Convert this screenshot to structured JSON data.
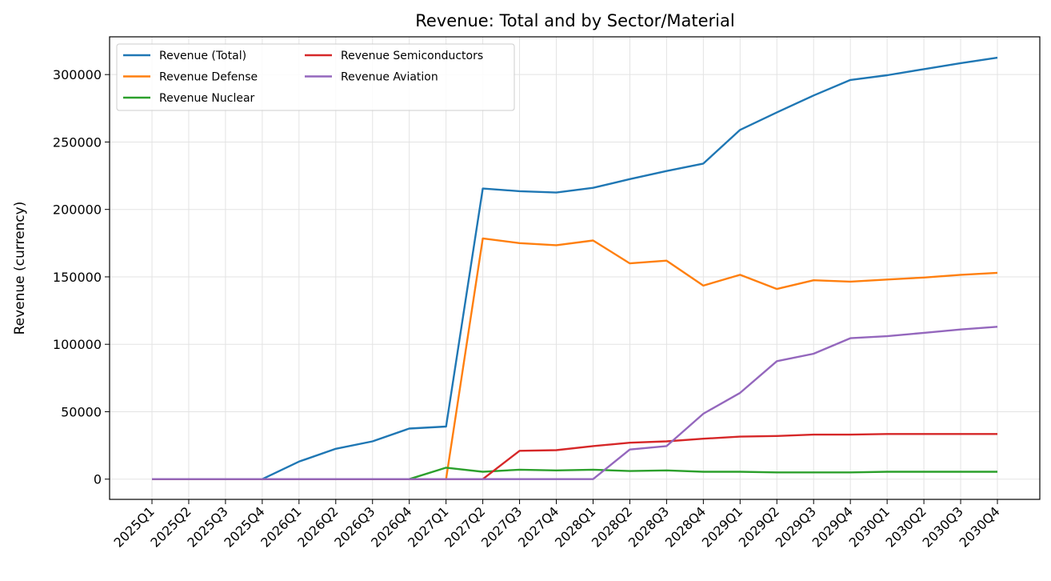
{
  "chart_data": {
    "type": "line",
    "title": "Revenue: Total and by Sector/Material",
    "xlabel": "",
    "ylabel": "Revenue (currency)",
    "ylim": [
      -15000,
      328000
    ],
    "yticks": [
      0,
      50000,
      100000,
      150000,
      200000,
      250000,
      300000
    ],
    "grid": true,
    "legend_position": "top-left",
    "legend_columns": 2,
    "categories": [
      "2025Q1",
      "2025Q2",
      "2025Q3",
      "2025Q4",
      "2026Q1",
      "2026Q2",
      "2026Q3",
      "2026Q4",
      "2027Q1",
      "2027Q2",
      "2027Q3",
      "2027Q4",
      "2028Q1",
      "2028Q2",
      "2028Q3",
      "2028Q4",
      "2029Q1",
      "2029Q2",
      "2029Q3",
      "2029Q4",
      "2030Q1",
      "2030Q2",
      "2030Q3",
      "2030Q4"
    ],
    "series": [
      {
        "name": "Revenue (Total)",
        "color": "#1f77b4",
        "values": [
          0,
          0,
          0,
          0,
          13000,
          22500,
          28000,
          37500,
          39000,
          215500,
          213500,
          212500,
          216000,
          222500,
          228500,
          234000,
          259000,
          272000,
          284500,
          296000,
          299500,
          304000,
          308500,
          312500
        ]
      },
      {
        "name": "Revenue Defense",
        "color": "#ff7f0e",
        "values": [
          0,
          0,
          0,
          0,
          0,
          0,
          0,
          0,
          0,
          178500,
          175000,
          173500,
          177000,
          160000,
          162000,
          143500,
          151500,
          141000,
          147500,
          146500,
          148000,
          149500,
          151500,
          153000
        ]
      },
      {
        "name": "Revenue Nuclear",
        "color": "#2ca02c",
        "values": [
          0,
          0,
          0,
          0,
          0,
          0,
          0,
          0,
          8500,
          5500,
          7000,
          6500,
          7000,
          6000,
          6500,
          5500,
          5500,
          5000,
          5000,
          5000,
          5500,
          5500,
          5500,
          5500
        ]
      },
      {
        "name": "Revenue Semiconductors",
        "color": "#d62728",
        "values": [
          0,
          0,
          0,
          0,
          0,
          0,
          0,
          0,
          0,
          0,
          21000,
          21500,
          24500,
          27000,
          28000,
          30000,
          31500,
          32000,
          33000,
          33000,
          33500,
          33500,
          33500,
          33500
        ]
      },
      {
        "name": "Revenue Aviation",
        "color": "#9467bd",
        "values": [
          0,
          0,
          0,
          0,
          0,
          0,
          0,
          0,
          0,
          0,
          0,
          0,
          0,
          22000,
          24500,
          48500,
          64000,
          87500,
          93000,
          104500,
          106000,
          108500,
          111000,
          113000
        ]
      }
    ]
  }
}
